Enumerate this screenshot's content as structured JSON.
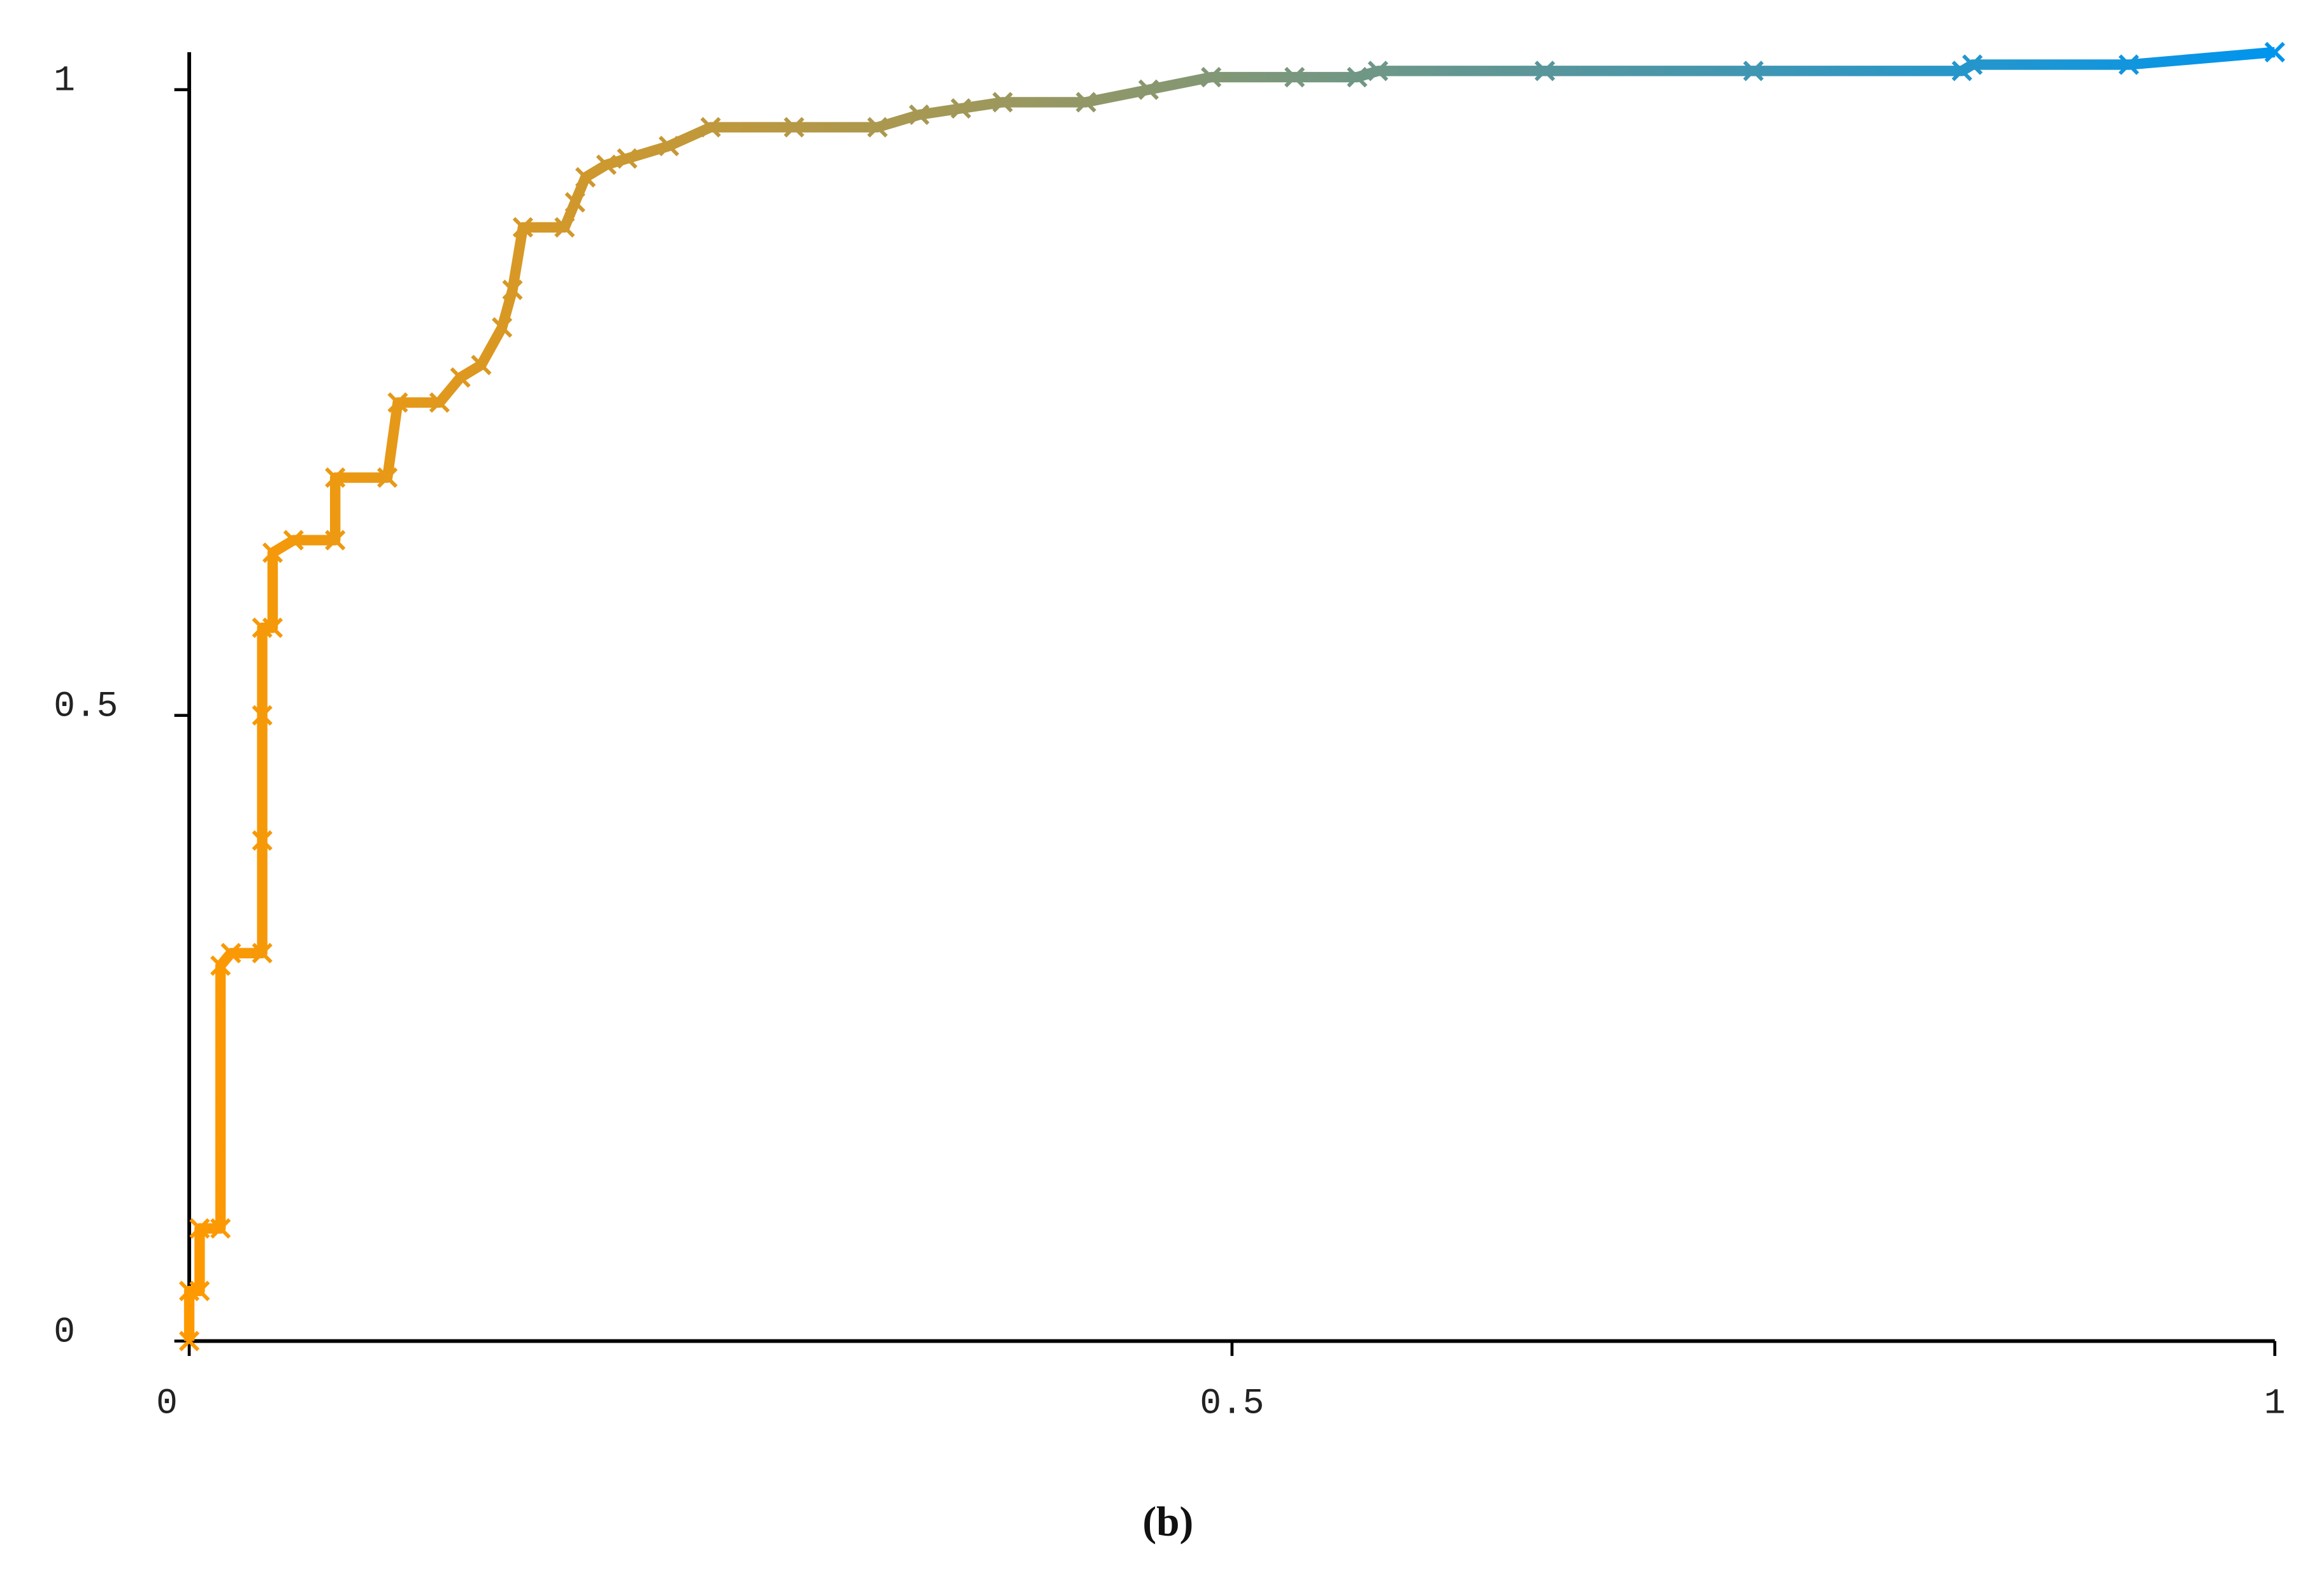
{
  "chart_data": {
    "type": "line",
    "caption": "(b)",
    "x": [
      0,
      0,
      0.005,
      0.005,
      0.015,
      0.015,
      0.02,
      0.035,
      0.035,
      0.035,
      0.035,
      0.04,
      0.04,
      0.05,
      0.07,
      0.07,
      0.095,
      0.1,
      0.12,
      0.13,
      0.14,
      0.15,
      0.155,
      0.16,
      0.18,
      0.185,
      0.19,
      0.2,
      0.21,
      0.23,
      0.25,
      0.29,
      0.33,
      0.35,
      0.37,
      0.39,
      0.43,
      0.46,
      0.49,
      0.53,
      0.56,
      0.57,
      0.65,
      0.75,
      0.85,
      0.855,
      0.93,
      1
    ],
    "series": [
      {
        "values": [
          0,
          0.04,
          0.04,
          0.09,
          0.09,
          0.3,
          0.31,
          0.31,
          0.4,
          0.5,
          0.57,
          0.57,
          0.63,
          0.64,
          0.64,
          0.69,
          0.69,
          0.75,
          0.75,
          0.77,
          0.78,
          0.81,
          0.84,
          0.89,
          0.89,
          0.91,
          0.93,
          0.94,
          0.945,
          0.955,
          0.97,
          0.97,
          0.97,
          0.98,
          0.985,
          0.99,
          0.99,
          1,
          1.01,
          1.01,
          1.01,
          1.015,
          1.015,
          1.015,
          1.015,
          1.02,
          1.02,
          1.03
        ]
      }
    ],
    "color_start": "#ff9900",
    "color_end": "#0095ee",
    "xlim": [
      0,
      1
    ],
    "ylim": [
      0,
      1.03
    ],
    "xticks": [
      0,
      0.5,
      1
    ],
    "yticks": [
      0,
      0.5,
      1
    ]
  }
}
